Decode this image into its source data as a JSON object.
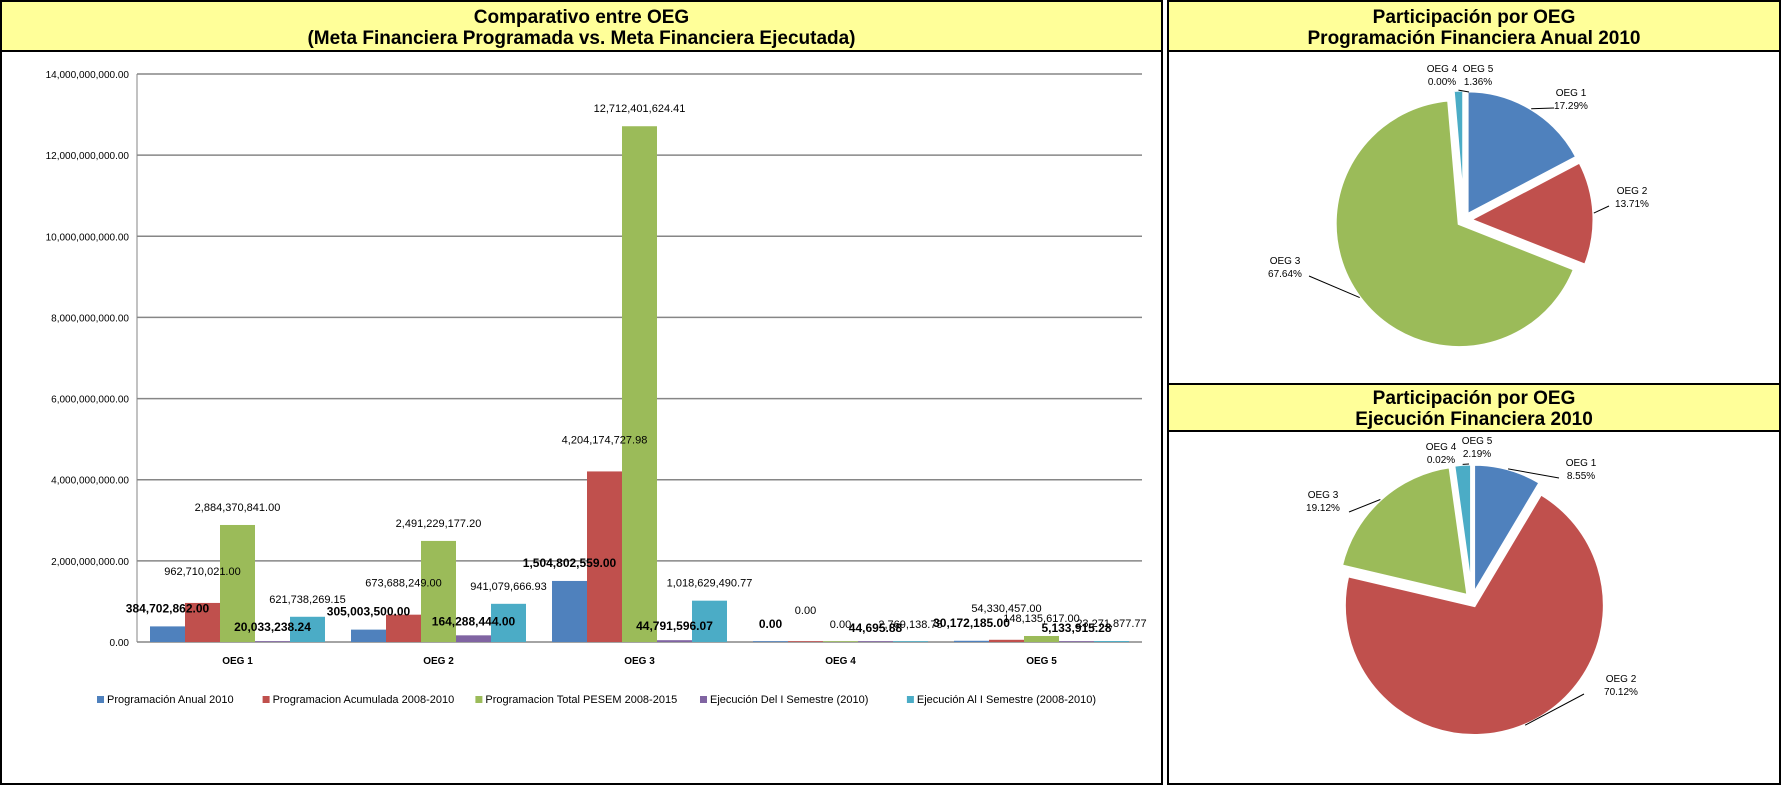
{
  "left_panel": {
    "title_line1": "Comparativo entre OEG",
    "title_line2": "(Meta Financiera Programada vs. Meta Financiera Ejecutada)"
  },
  "right_top_panel": {
    "title_line1": "Participación por OEG",
    "title_line2": "Programación Financiera Anual 2010"
  },
  "right_bottom_panel": {
    "title_line1": "Participación por OEG",
    "title_line2": "Ejecución Financiera 2010"
  },
  "colors": {
    "blue": "#4f81bd",
    "red": "#c0504d",
    "green": "#9bbb59",
    "purple": "#8064a2",
    "cyan": "#4bacc6",
    "header_bg": "#ffff99",
    "grid": "#868686"
  },
  "chart_data": [
    {
      "type": "bar",
      "categories": [
        "OEG 1",
        "OEG 2",
        "OEG 3",
        "OEG 4",
        "OEG 5"
      ],
      "ylim": [
        0,
        14000000000
      ],
      "yticks": [
        "0.00",
        "2,000,000,000.00",
        "4,000,000,000.00",
        "6,000,000,000.00",
        "8,000,000,000.00",
        "10,000,000,000.00",
        "12,000,000,000.00",
        "14,000,000,000.00"
      ],
      "grid": true,
      "legend_position": "bottom",
      "series": [
        {
          "name": "Programación Anual  2010",
          "color": "#4f81bd",
          "values": [
            384702862.0,
            305003500.0,
            1504802559.0,
            0.0,
            30172185.0
          ],
          "labels": [
            "384,702,862.00",
            "305,003,500.00",
            "1,504,802,559.00",
            "0.00",
            "30,172,185.00"
          ],
          "bold": true
        },
        {
          "name": "Programacion Acumulada 2008-2010",
          "color": "#c0504d",
          "values": [
            962710021.0,
            673688249.0,
            4204174727.98,
            0.0,
            54330457.0
          ],
          "labels": [
            "962,710,021.00",
            "673,688,249.00",
            "4,204,174,727.98",
            "0.00",
            "54,330,457.00"
          ],
          "bold": false
        },
        {
          "name": "Programacion Total PESEM 2008-2015",
          "color": "#9bbb59",
          "values": [
            2884370841.0,
            2491229177.2,
            12712401624.41,
            0.0,
            148135617.0
          ],
          "labels": [
            "2,884,370,841.00",
            "2,491,229,177.20",
            "12,712,401,624.41",
            "0.00",
            "148,135,617.00"
          ],
          "bold": false
        },
        {
          "name": "Ejecución Del I Semestre (2010)",
          "color": "#8064a2",
          "values": [
            20033238.24,
            164288444.0,
            44791596.07,
            44695.88,
            5133915.28
          ],
          "labels": [
            "20,033,238.24",
            "164,288,444.00",
            "44,791,596.07",
            "44,695.88",
            "5,133,915.28"
          ],
          "bold": true
        },
        {
          "name": "Ejecución Al I Semestre (2008-2010)",
          "color": "#4bacc6",
          "values": [
            621738269.15,
            941079666.93,
            1018629490.77,
            2769138.75,
            23271877.77
          ],
          "labels": [
            "621,738,269.15",
            "941,079,666.93",
            "1,018,629,490.77",
            "2,769,138.75",
            "23,271,877.77"
          ],
          "bold": false
        }
      ]
    },
    {
      "type": "pie",
      "title": "Programación Financiera Anual 2010",
      "slices": [
        {
          "name": "OEG 1",
          "value": 17.29,
          "label": "17.29%",
          "color": "#4f81bd"
        },
        {
          "name": "OEG 2",
          "value": 13.71,
          "label": "13.71%",
          "color": "#c0504d"
        },
        {
          "name": "OEG 3",
          "value": 67.64,
          "label": "67.64%",
          "color": "#9bbb59"
        },
        {
          "name": "OEG 4",
          "value": 0.0,
          "label": "0.00%",
          "color": "#8064a2"
        },
        {
          "name": "OEG 5",
          "value": 1.36,
          "label": "1.36%",
          "color": "#4bacc6"
        }
      ]
    },
    {
      "type": "pie",
      "title": "Ejecución Financiera 2010",
      "slices": [
        {
          "name": "OEG 1",
          "value": 8.55,
          "label": "8.55%",
          "color": "#4f81bd"
        },
        {
          "name": "OEG 2",
          "value": 70.12,
          "label": "70.12%",
          "color": "#c0504d"
        },
        {
          "name": "OEG 3",
          "value": 19.12,
          "label": "19.12%",
          "color": "#9bbb59"
        },
        {
          "name": "OEG 4",
          "value": 0.02,
          "label": "0.02%",
          "color": "#8064a2"
        },
        {
          "name": "OEG 5",
          "value": 2.19,
          "label": "2.19%",
          "color": "#4bacc6"
        }
      ]
    }
  ]
}
